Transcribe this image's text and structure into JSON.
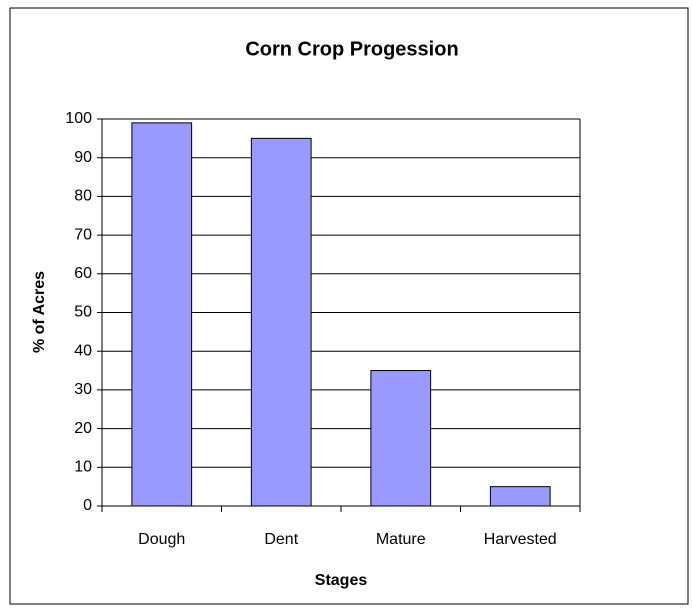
{
  "chart_data": {
    "type": "bar",
    "title": "Corn Crop Progession",
    "x_label": "Stages",
    "y_label": "% of Acres",
    "categories": [
      "Dough",
      "Dent",
      "Mature",
      "Harvested"
    ],
    "values": [
      99,
      95,
      35,
      5
    ],
    "color": "#9999ff",
    "ylim": [
      0,
      100
    ],
    "yticks": [
      0,
      10,
      20,
      30,
      40,
      50,
      60,
      70,
      80,
      90,
      100
    ],
    "grid": true
  }
}
